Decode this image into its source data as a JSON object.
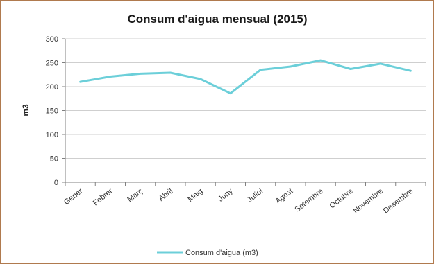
{
  "chart_data": {
    "type": "line",
    "title": "Consum d'aigua mensual (2015)",
    "xlabel": "",
    "ylabel": "m3",
    "categories": [
      "Gener",
      "Febrer",
      "Març",
      "Abril",
      "Maig",
      "Juny",
      "Juliol",
      "Agost",
      "Setembre",
      "Octubre",
      "Novembre",
      "Desembre"
    ],
    "series": [
      {
        "name": "Consum d'aigua (m3)",
        "values": [
          210,
          221,
          227,
          229,
          216,
          186,
          235,
          242,
          255,
          237,
          248,
          233
        ]
      }
    ],
    "ylim": [
      0,
      300
    ],
    "yticks": [
      0,
      50,
      100,
      150,
      200,
      250,
      300
    ],
    "grid": true,
    "legend": "bottom",
    "colors": {
      "series": "#6ccfd9",
      "grid": "#cfcfcf",
      "axis": "#808080",
      "border": "#b07a4e"
    }
  }
}
